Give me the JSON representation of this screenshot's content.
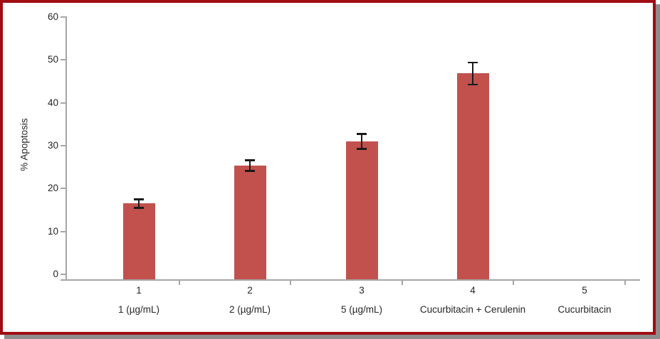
{
  "chart_data": {
    "type": "bar",
    "title": "",
    "xlabel": "",
    "ylabel": "% Apoptosis",
    "ylim": [
      0,
      60
    ],
    "yticks": [
      0,
      10,
      20,
      30,
      40,
      50,
      60
    ],
    "grid": false,
    "legend": false,
    "categories": [
      "1",
      "2",
      "3",
      "4",
      "5"
    ],
    "category_sublabels": [
      "1 (µg/mL)",
      "2 (µg/mL)",
      "5 (µg/mL)",
      "Cucurbitacin + Cerulenin",
      "Cucurbitacin"
    ],
    "series": [
      {
        "name": "% Apoptosis",
        "values": [
          17.3,
          26,
          31.5,
          47,
          0
        ],
        "errors": [
          1.0,
          1.2,
          1.7,
          2.5,
          0
        ]
      }
    ],
    "colors": {
      "bar": "#c2514d",
      "error_bar": "#1a1a1a",
      "axis": "#a6a6a6",
      "text": "#262626",
      "frame_border": "#a00d12",
      "frame_shadow": "#8d8d8d",
      "background": "#ffffff"
    }
  }
}
